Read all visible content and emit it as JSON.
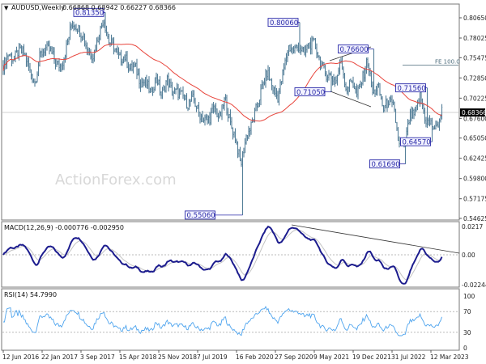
{
  "chart_data": {
    "type": "candlestick",
    "symbol": "AUDUSD",
    "header": {
      "title": "AUDUSD,Weekly",
      "ohlc": "0.66868 0.68942 0.66227 0.68366"
    },
    "last_price": "0.68366",
    "watermark": "ActionForex.com",
    "y_ticks": [
      "0.80650",
      "0.78025",
      "0.75475",
      "0.72850",
      "0.70225",
      "0.67600",
      "0.65050",
      "0.62425",
      "0.59800",
      "0.57175",
      "0.54625"
    ],
    "ylim": [
      0.54625,
      0.8065
    ],
    "x_ticks": [
      "12 Jun 2016",
      "22 Jan 2017",
      "3 Sep 2017",
      "15 Apr 2018",
      "25 Nov 2018",
      "7 Jul 2019",
      "16 Feb 2020",
      "27 Sep 2020",
      "9 May 2021",
      "19 Dec 2021",
      "31 Jul 2022",
      "12 Mar 2023"
    ],
    "x_tick_dates": [
      "2016-06-12",
      "2017-01-22",
      "2017-09-03",
      "2018-04-15",
      "2018-11-25",
      "2019-07-07",
      "2020-02-16",
      "2020-09-27",
      "2021-05-09",
      "2021-12-19",
      "2022-07-31",
      "2023-03-12"
    ],
    "monthly_closes_start": "2016-06",
    "monthly_closes": [
      0.745,
      0.76,
      0.752,
      0.765,
      0.76,
      0.738,
      0.722,
      0.758,
      0.767,
      0.763,
      0.748,
      0.743,
      0.769,
      0.8,
      0.795,
      0.784,
      0.765,
      0.757,
      0.781,
      0.806,
      0.776,
      0.768,
      0.753,
      0.756,
      0.74,
      0.743,
      0.723,
      0.723,
      0.708,
      0.731,
      0.705,
      0.727,
      0.71,
      0.71,
      0.705,
      0.694,
      0.702,
      0.684,
      0.674,
      0.675,
      0.69,
      0.676,
      0.702,
      0.669,
      0.651,
      0.615,
      0.652,
      0.666,
      0.69,
      0.715,
      0.737,
      0.716,
      0.703,
      0.735,
      0.769,
      0.765,
      0.77,
      0.76,
      0.772,
      0.773,
      0.75,
      0.734,
      0.731,
      0.723,
      0.752,
      0.712,
      0.727,
      0.706,
      0.726,
      0.752,
      0.707,
      0.718,
      0.688,
      0.699,
      0.689,
      0.64,
      0.64,
      0.678,
      0.681,
      0.706,
      0.673,
      0.669,
      0.661,
      0.6837
    ],
    "pivots": [
      {
        "label": "0.81350",
        "value": 0.8135,
        "date": "2018-01",
        "kind": "high"
      },
      {
        "label": "0.55060",
        "value": 0.5506,
        "date": "2020-03",
        "kind": "low"
      },
      {
        "label": "0.80060",
        "value": 0.8006,
        "date": "2021-02",
        "kind": "high"
      },
      {
        "label": "0.71050",
        "value": 0.7105,
        "date": "2021-08",
        "kind": "low"
      },
      {
        "label": "0.76600",
        "value": 0.766,
        "date": "2022-04",
        "kind": "high"
      },
      {
        "label": "0.61690",
        "value": 0.6169,
        "date": "2022-10",
        "kind": "low"
      },
      {
        "label": "0.71560",
        "value": 0.7156,
        "date": "2023-02",
        "kind": "high"
      },
      {
        "label": "0.64570",
        "value": 0.6457,
        "date": "2023-03",
        "kind": "low"
      }
    ],
    "fe_label": "FE 100.0",
    "fe_level": 0.745,
    "moving_average": {
      "period": 55,
      "color": "#e8453c"
    },
    "macd": {
      "header": "MACD(12,26,9) -0.000776 -0.002950",
      "ticks": [
        "0.0217",
        "0.00",
        "-0.022445"
      ],
      "ylim": [
        -0.022445,
        0.0217
      ],
      "main_color": "#1c1c8e",
      "signal_color": "#c4c4c4"
    },
    "rsi": {
      "header": "RSI(14) 54.7990",
      "ticks": [
        "100",
        "70",
        "30",
        "0"
      ],
      "levels": [
        70,
        30
      ],
      "color": "#4ea4ee"
    },
    "colors": {
      "bars": "#547f98",
      "pivot_box": "#2a2aa8"
    }
  }
}
